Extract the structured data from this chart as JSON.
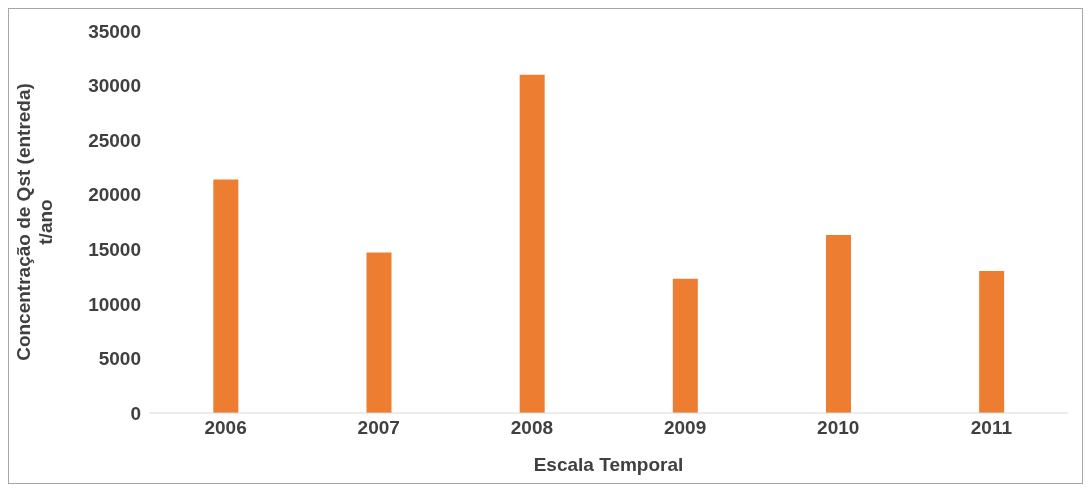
{
  "chart_data": {
    "type": "bar",
    "xlabel": "Escala Temporal",
    "ylabel": "Concentração de Qst (entreda) t/ano",
    "categories": [
      "2006",
      "2007",
      "2008",
      "2009",
      "2010",
      "2011"
    ],
    "values": [
      21400,
      14700,
      31000,
      12300,
      16300,
      13000
    ],
    "color": "#ed7d31",
    "ylim": [
      0,
      35000
    ],
    "yticks": [
      0,
      5000,
      10000,
      15000,
      20000,
      25000,
      30000,
      35000
    ],
    "grid": false,
    "legend": false
  }
}
